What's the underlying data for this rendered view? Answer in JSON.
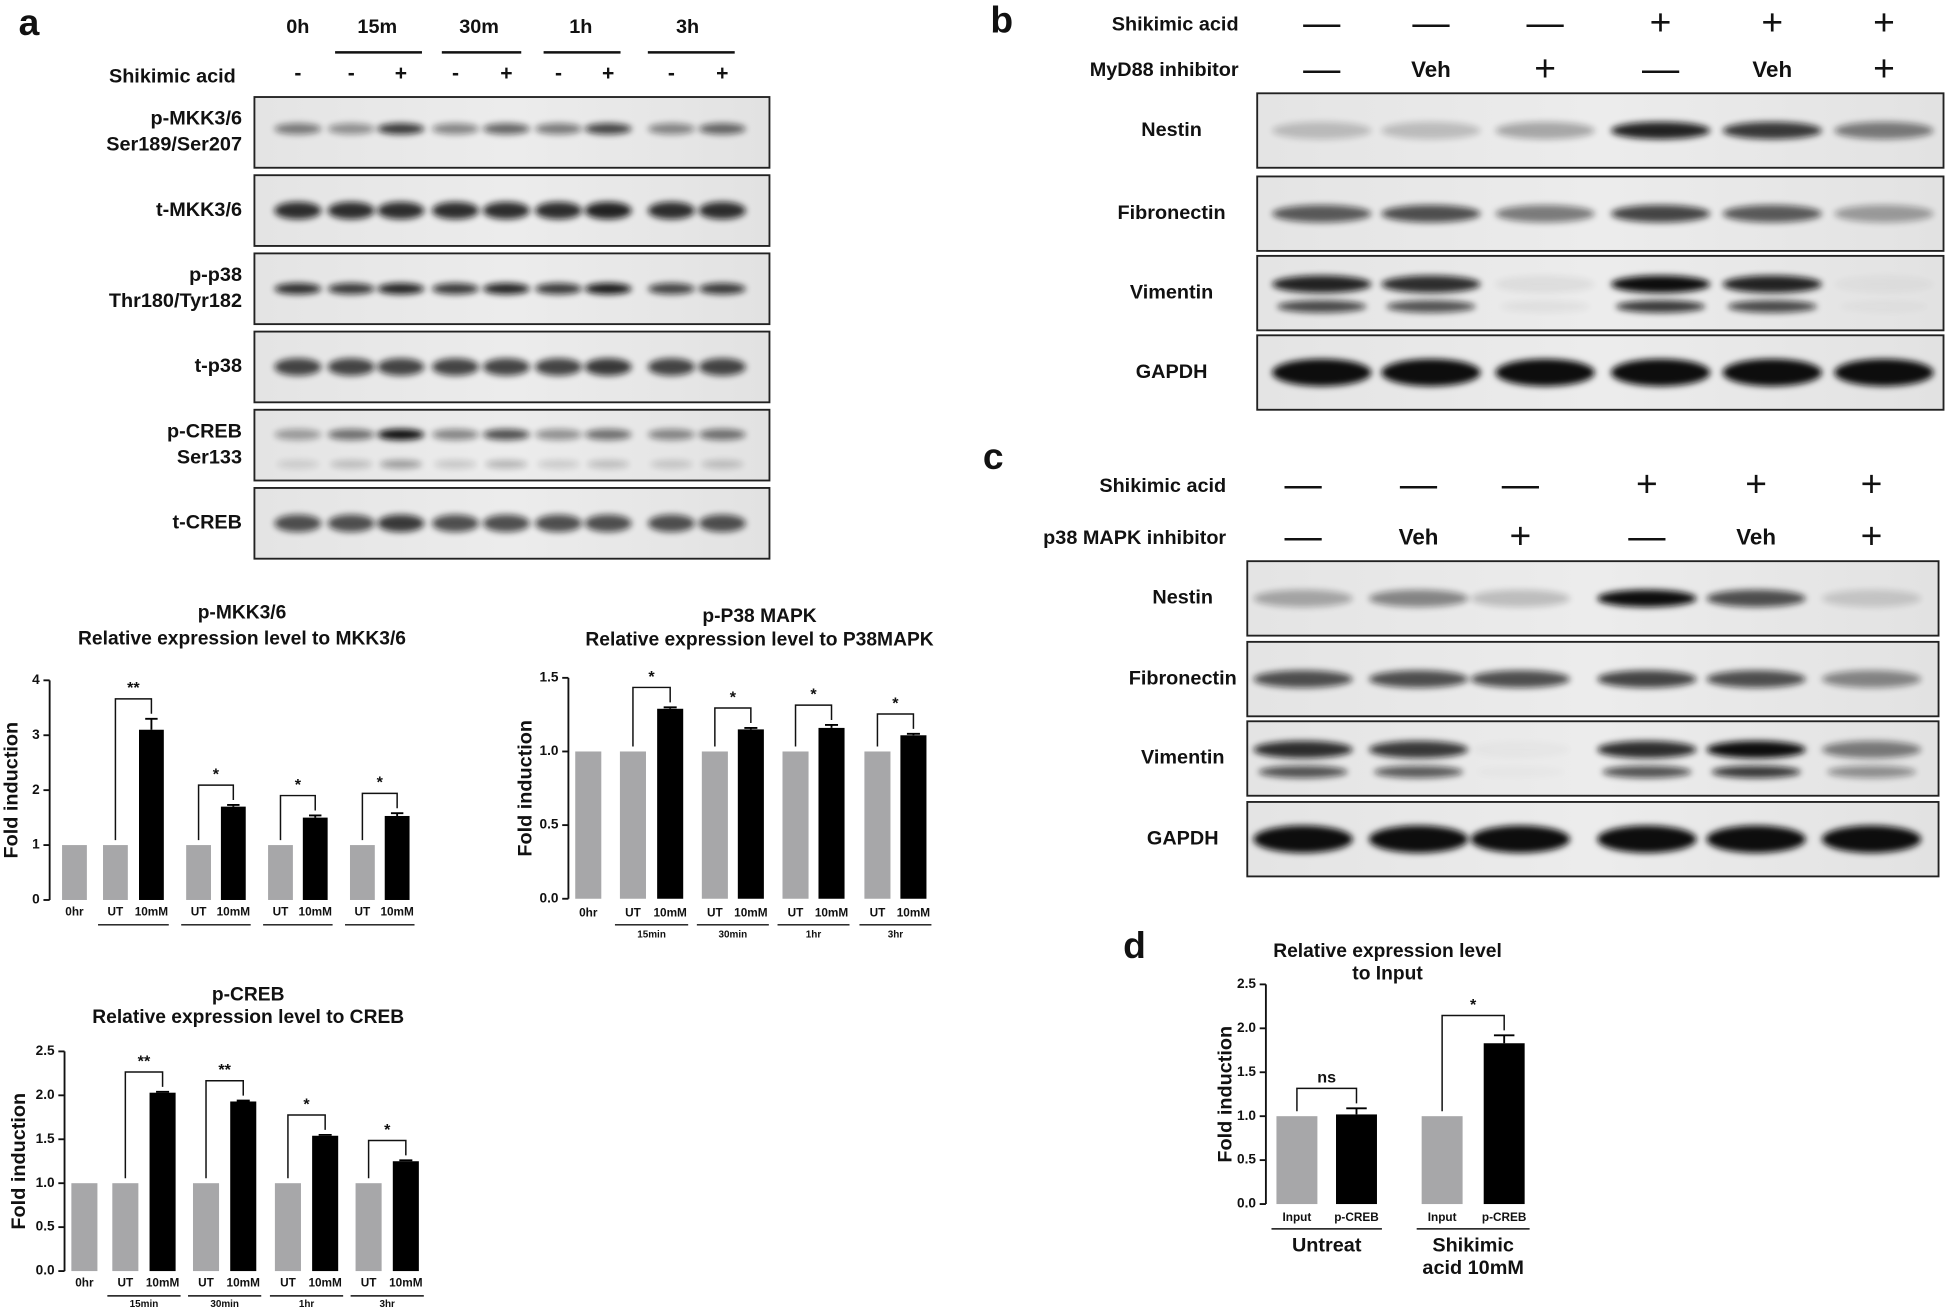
{
  "panel_a_blot": {
    "label": "a",
    "times": [
      "0h",
      "15m",
      "30m",
      "1h",
      "3h"
    ],
    "treatment_label": "Shikimic acid",
    "treatment": [
      "-",
      "-",
      "+",
      "-",
      "+",
      "-",
      "+",
      "-",
      "+"
    ],
    "rows": [
      [
        "p-MKK3/6",
        "Ser189/Ser207"
      ],
      [
        "t-MKK3/6"
      ],
      [
        "p-p38",
        "Thr180/Tyr182"
      ],
      [
        "t-p38"
      ],
      [
        "p-CREB",
        "Ser133"
      ],
      [
        "t-CREB"
      ]
    ]
  },
  "panel_b_blot": {
    "label": "b",
    "header": [
      {
        "label": "Shikimic acid",
        "marks": [
          "—",
          "—",
          "—",
          "+",
          "+",
          "+"
        ]
      },
      {
        "label": "MyD88 inhibitor",
        "marks": [
          "—",
          "Veh",
          "+",
          "—",
          "Veh",
          "+"
        ]
      }
    ],
    "rows": [
      "Nestin",
      "Fibronectin",
      "Vimentin",
      "GAPDH"
    ]
  },
  "panel_c_blot": {
    "label": "c",
    "header": [
      {
        "label": "Shikimic acid",
        "marks": [
          "—",
          "—",
          "—",
          "+",
          "+",
          "+"
        ]
      },
      {
        "label": "p38 MAPK inhibitor",
        "marks": [
          "—",
          "Veh",
          "+",
          "—",
          "Veh",
          "+"
        ]
      }
    ],
    "rows": [
      "Nestin",
      "Fibronectin",
      "Vimentin",
      "GAPDH"
    ]
  },
  "panel_d": {
    "label": "d"
  },
  "chart_data": [
    {
      "type": "bar",
      "title": [
        "p-MKK3/6",
        "Relative expression level to MKK3/6"
      ],
      "y_label": "Fold induction",
      "categories": [
        "0hr",
        "UT",
        "10mM",
        "UT",
        "10mM",
        "UT",
        "10mM",
        "UT",
        "10mM"
      ],
      "values": [
        1,
        1,
        3.1,
        1,
        1.7,
        1,
        1.5,
        1,
        1.53
      ],
      "errors": [
        null,
        null,
        0.2,
        null,
        0.03,
        null,
        0.04,
        null,
        0.05
      ],
      "colors": [
        "#a7a7a9",
        "#a7a7a9",
        "#000000",
        "#a7a7a9",
        "#000000",
        "#a7a7a9",
        "#000000",
        "#a7a7a9",
        "#000000"
      ],
      "ylim": [
        0,
        4
      ],
      "yticks": [
        0,
        1,
        2,
        3,
        4
      ],
      "significance": [
        "**",
        "*",
        "*",
        "*"
      ]
    },
    {
      "type": "bar",
      "title": [
        "p-P38 MAPK",
        "Relative expression level to P38MAPK"
      ],
      "y_label": "Fold induction",
      "categories": [
        "0hr",
        "UT",
        "10mM",
        "UT",
        "10mM",
        "UT",
        "10mM",
        "UT",
        "10mM"
      ],
      "values": [
        1,
        1,
        1.29,
        1,
        1.15,
        1,
        1.16,
        1,
        1.11
      ],
      "errors": [
        null,
        null,
        0.01,
        null,
        0.01,
        null,
        0.02,
        null,
        0.01
      ],
      "colors": [
        "#a7a7a9",
        "#a7a7a9",
        "#000000",
        "#a7a7a9",
        "#000000",
        "#a7a7a9",
        "#000000",
        "#a7a7a9",
        "#000000"
      ],
      "ylim": [
        0,
        1.5
      ],
      "yticks": [
        {
          "value": 0,
          "label": "0.0"
        },
        {
          "value": 0.5,
          "label": "0.5"
        },
        {
          "value": 1,
          "label": "1.0"
        },
        {
          "value": 1.5,
          "label": "1.5"
        }
      ],
      "groups": [
        [
          "15min"
        ],
        [
          "30min"
        ],
        [
          "1hr"
        ],
        [
          "3hr"
        ]
      ],
      "significance": [
        "*",
        "*",
        "*",
        "*"
      ]
    },
    {
      "type": "bar",
      "title": [
        "p-CREB",
        "Relative expression level to CREB"
      ],
      "y_label": "Fold induction",
      "categories": [
        "0hr",
        "UT",
        "10mM",
        "UT",
        "10mM",
        "UT",
        "10mM",
        "UT",
        "10mM"
      ],
      "values": [
        1,
        1,
        2.03,
        1,
        1.93,
        1,
        1.54,
        1,
        1.25
      ],
      "errors": [
        null,
        null,
        0.01,
        null,
        0.01,
        null,
        0.01,
        null,
        0.01
      ],
      "colors": [
        "#a7a7a9",
        "#a7a7a9",
        "#000000",
        "#a7a7a9",
        "#000000",
        "#a7a7a9",
        "#000000",
        "#a7a7a9",
        "#000000"
      ],
      "ylim": [
        0,
        2.5
      ],
      "yticks": [
        {
          "value": 0,
          "label": "0.0"
        },
        {
          "value": 0.5,
          "label": "0.5"
        },
        {
          "value": 1,
          "label": "1.0"
        },
        {
          "value": 1.5,
          "label": "1.5"
        },
        {
          "value": 2,
          "label": "2.0"
        },
        {
          "value": 2.5,
          "label": "2.5"
        }
      ],
      "groups": [
        [
          "15min"
        ],
        [
          "30min"
        ],
        [
          "1hr"
        ],
        [
          "3hr"
        ]
      ],
      "significance": [
        "**",
        "**",
        "*",
        "*"
      ]
    },
    {
      "type": "bar",
      "title": [
        "Relative expression level",
        "to Input"
      ],
      "y_label": "Fold induction",
      "categories": [
        "Input",
        "p-CREB",
        "Input",
        "p-CREB"
      ],
      "values": [
        1,
        1.02,
        1,
        1.83
      ],
      "errors": [
        null,
        0.07,
        null,
        0.09
      ],
      "colors": [
        "#a7a7a9",
        "#000000",
        "#a7a7a9",
        "#000000"
      ],
      "ylim": [
        0,
        2.5
      ],
      "yticks": [
        {
          "value": 0,
          "label": "0.0"
        },
        {
          "value": 0.5,
          "label": "0.5"
        },
        {
          "value": 1,
          "label": "1.0"
        },
        {
          "value": 1.5,
          "label": "1.5"
        },
        {
          "value": 2,
          "label": "2.0"
        },
        {
          "value": 2.5,
          "label": "2.5"
        }
      ],
      "groups": [
        [
          "Untreat"
        ],
        [
          "Shikimic",
          "acid 10mM"
        ]
      ],
      "significance": [
        "ns",
        "*"
      ]
    }
  ]
}
